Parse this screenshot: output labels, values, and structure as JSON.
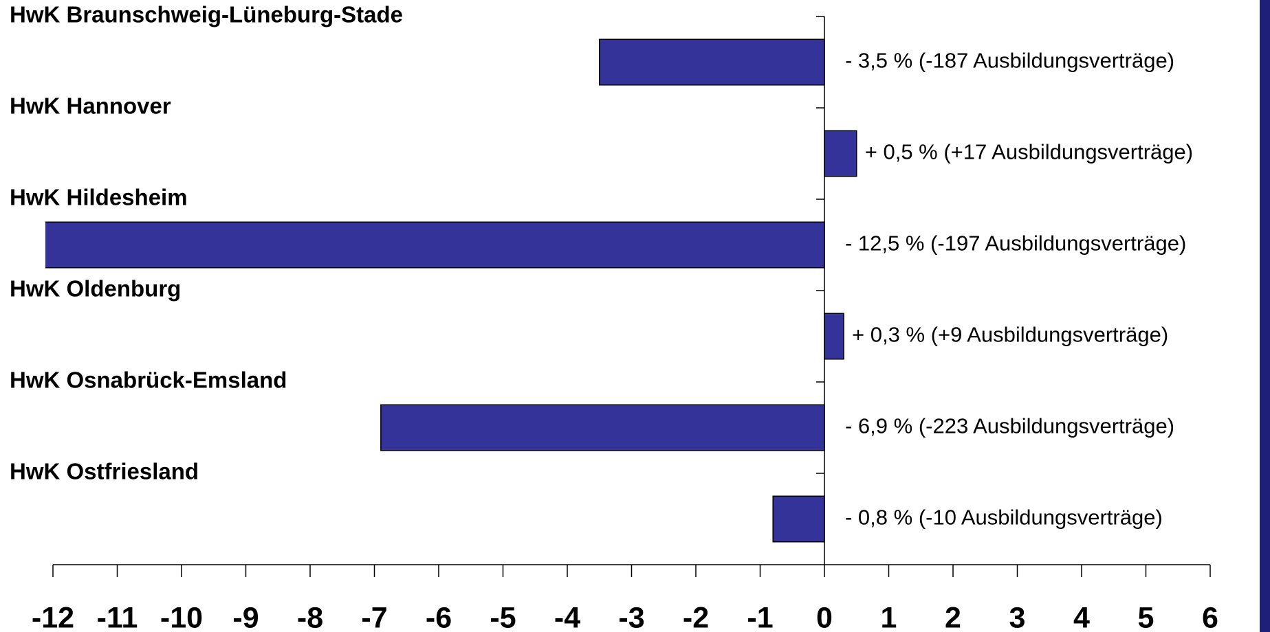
{
  "chart_data": {
    "type": "hbar",
    "categories": [
      "HwK Braunschweig-Lüneburg-Stade",
      "HwK Hannover",
      "HwK Hildesheim",
      "HwK Oldenburg",
      "HwK Osnabrück-Emsland",
      "HwK Ostfriesland"
    ],
    "values": [
      -3.5,
      0.5,
      -12.5,
      0.3,
      -6.9,
      -0.8
    ],
    "value_labels": [
      "- 3,5 % (-187 Ausbildungsverträge)",
      "+ 0,5 % (+17 Ausbildungsverträge)",
      "- 12,5 % (-197 Ausbildungsverträge)",
      "+ 0,3 % (+9 Ausbildungsverträge)",
      "- 6,9 % (-223 Ausbildungsverträge)",
      "- 0,8 % (-10 Ausbildungsverträge)"
    ],
    "color": "#333399",
    "xlim": [
      -12,
      6
    ],
    "xticks": [
      -12,
      -11,
      -10,
      -9,
      -8,
      -7,
      -6,
      -5,
      -4,
      -3,
      -2,
      -1,
      0,
      1,
      2,
      3,
      4,
      5,
      6
    ]
  }
}
